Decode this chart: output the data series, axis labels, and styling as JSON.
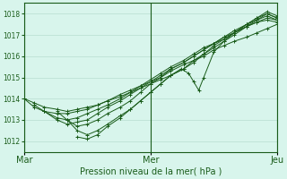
{
  "title": "Pression niveau de la mer( hPa )",
  "bg_color": "#d8f5ec",
  "grid_color": "#b8ddd0",
  "line_color": "#1a5c1a",
  "ylim": [
    1011.5,
    1018.5
  ],
  "yticks": [
    1012,
    1013,
    1014,
    1015,
    1016,
    1017,
    1018
  ],
  "xtick_labels": [
    "Mar",
    "Mer",
    "Jeu"
  ],
  "xtick_positions": [
    0.0,
    0.5,
    1.0
  ],
  "series": [
    {
      "x": [
        0.0,
        0.04,
        0.08,
        0.13,
        0.17,
        0.21,
        0.25,
        0.29,
        0.33,
        0.38,
        0.42,
        0.46,
        0.5,
        0.54,
        0.58,
        0.63,
        0.67,
        0.71,
        0.75,
        0.79,
        0.83,
        0.88,
        0.92,
        0.96,
        1.0
      ],
      "y": [
        1014.0,
        1013.6,
        1013.4,
        1013.3,
        1013.3,
        1013.4,
        1013.5,
        1013.7,
        1013.9,
        1014.2,
        1014.4,
        1014.6,
        1014.8,
        1015.0,
        1015.3,
        1015.6,
        1015.8,
        1016.0,
        1016.3,
        1016.5,
        1016.7,
        1016.9,
        1017.1,
        1017.3,
        1017.5
      ],
      "marker": true
    },
    {
      "x": [
        0.04,
        0.08,
        0.13,
        0.17,
        0.21,
        0.25,
        0.29,
        0.33,
        0.38,
        0.42,
        0.46,
        0.5,
        0.54,
        0.58,
        0.63,
        0.67,
        0.71,
        0.75,
        0.79,
        0.83,
        0.88,
        0.92,
        0.96,
        1.0
      ],
      "y": [
        1013.7,
        1013.4,
        1013.1,
        1013.0,
        1013.1,
        1013.3,
        1013.5,
        1013.7,
        1014.0,
        1014.3,
        1014.6,
        1014.9,
        1015.2,
        1015.5,
        1015.8,
        1016.1,
        1016.4,
        1016.6,
        1016.9,
        1017.1,
        1017.4,
        1017.6,
        1017.7,
        1017.6
      ],
      "marker": true
    },
    {
      "x": [
        0.08,
        0.13,
        0.17,
        0.21,
        0.25,
        0.29,
        0.33,
        0.38,
        0.42,
        0.46,
        0.5,
        0.54,
        0.58,
        0.63,
        0.67,
        0.71,
        0.75,
        0.79,
        0.83,
        0.88,
        0.92,
        0.96,
        1.0
      ],
      "y": [
        1013.4,
        1013.0,
        1012.8,
        1012.9,
        1013.0,
        1013.3,
        1013.6,
        1013.9,
        1014.2,
        1014.5,
        1014.8,
        1015.1,
        1015.4,
        1015.7,
        1016.0,
        1016.3,
        1016.6,
        1016.8,
        1017.1,
        1017.4,
        1017.6,
        1017.8,
        1017.7
      ],
      "marker": true
    },
    {
      "x": [
        0.13,
        0.17,
        0.21,
        0.25,
        0.29,
        0.33,
        0.38,
        0.42,
        0.46,
        0.5,
        0.54,
        0.58,
        0.63,
        0.67,
        0.71,
        0.75,
        0.79,
        0.83,
        0.88,
        0.92,
        0.96,
        1.0
      ],
      "y": [
        1013.4,
        1013.0,
        1012.7,
        1012.8,
        1013.0,
        1013.3,
        1013.6,
        1013.9,
        1014.3,
        1014.7,
        1015.0,
        1015.4,
        1015.7,
        1016.0,
        1016.3,
        1016.6,
        1016.9,
        1017.2,
        1017.5,
        1017.7,
        1017.9,
        1017.7
      ],
      "marker": true
    },
    {
      "x": [
        0.17,
        0.21,
        0.25,
        0.29,
        0.33,
        0.38,
        0.42,
        0.46,
        0.5,
        0.54,
        0.58,
        0.63,
        0.67,
        0.71,
        0.75,
        0.79,
        0.83,
        0.88,
        0.92,
        0.96,
        1.0
      ],
      "y": [
        1013.0,
        1012.5,
        1012.3,
        1012.5,
        1012.8,
        1013.2,
        1013.5,
        1013.9,
        1014.3,
        1014.7,
        1015.1,
        1015.4,
        1015.7,
        1016.1,
        1016.4,
        1016.7,
        1017.0,
        1017.4,
        1017.7,
        1018.0,
        1017.8
      ],
      "marker": true
    },
    {
      "x": [
        0.21,
        0.25,
        0.29,
        0.33,
        0.38,
        0.42,
        0.46,
        0.5,
        0.54,
        0.58,
        0.63,
        0.67,
        0.71,
        0.75,
        0.79,
        0.83,
        0.88,
        0.92,
        0.96,
        1.0
      ],
      "y": [
        1012.2,
        1012.1,
        1012.3,
        1012.7,
        1013.1,
        1013.5,
        1013.9,
        1014.3,
        1014.7,
        1015.1,
        1015.4,
        1015.8,
        1016.1,
        1016.5,
        1016.8,
        1017.1,
        1017.5,
        1017.8,
        1018.1,
        1017.9
      ],
      "marker": true
    },
    {
      "x": [
        0.0,
        0.04,
        0.08,
        0.13,
        0.17,
        0.21,
        0.25,
        0.29,
        0.33,
        0.38,
        0.42,
        0.46,
        0.5,
        0.54,
        0.58,
        0.62,
        0.65,
        0.67,
        0.69,
        0.71,
        0.75,
        0.79,
        0.83,
        0.88,
        0.92,
        0.96,
        1.0
      ],
      "y": [
        1014.0,
        1013.8,
        1013.6,
        1013.5,
        1013.4,
        1013.5,
        1013.6,
        1013.7,
        1013.9,
        1014.1,
        1014.3,
        1014.5,
        1014.7,
        1014.9,
        1015.1,
        1015.4,
        1015.2,
        1014.8,
        1014.4,
        1015.0,
        1016.2,
        1016.7,
        1017.1,
        1017.5,
        1017.8,
        1018.0,
        1017.8
      ],
      "marker": true
    }
  ],
  "vline_color": "#1a5c1a",
  "vline_positions": [
    0.0,
    0.5,
    1.0
  ]
}
